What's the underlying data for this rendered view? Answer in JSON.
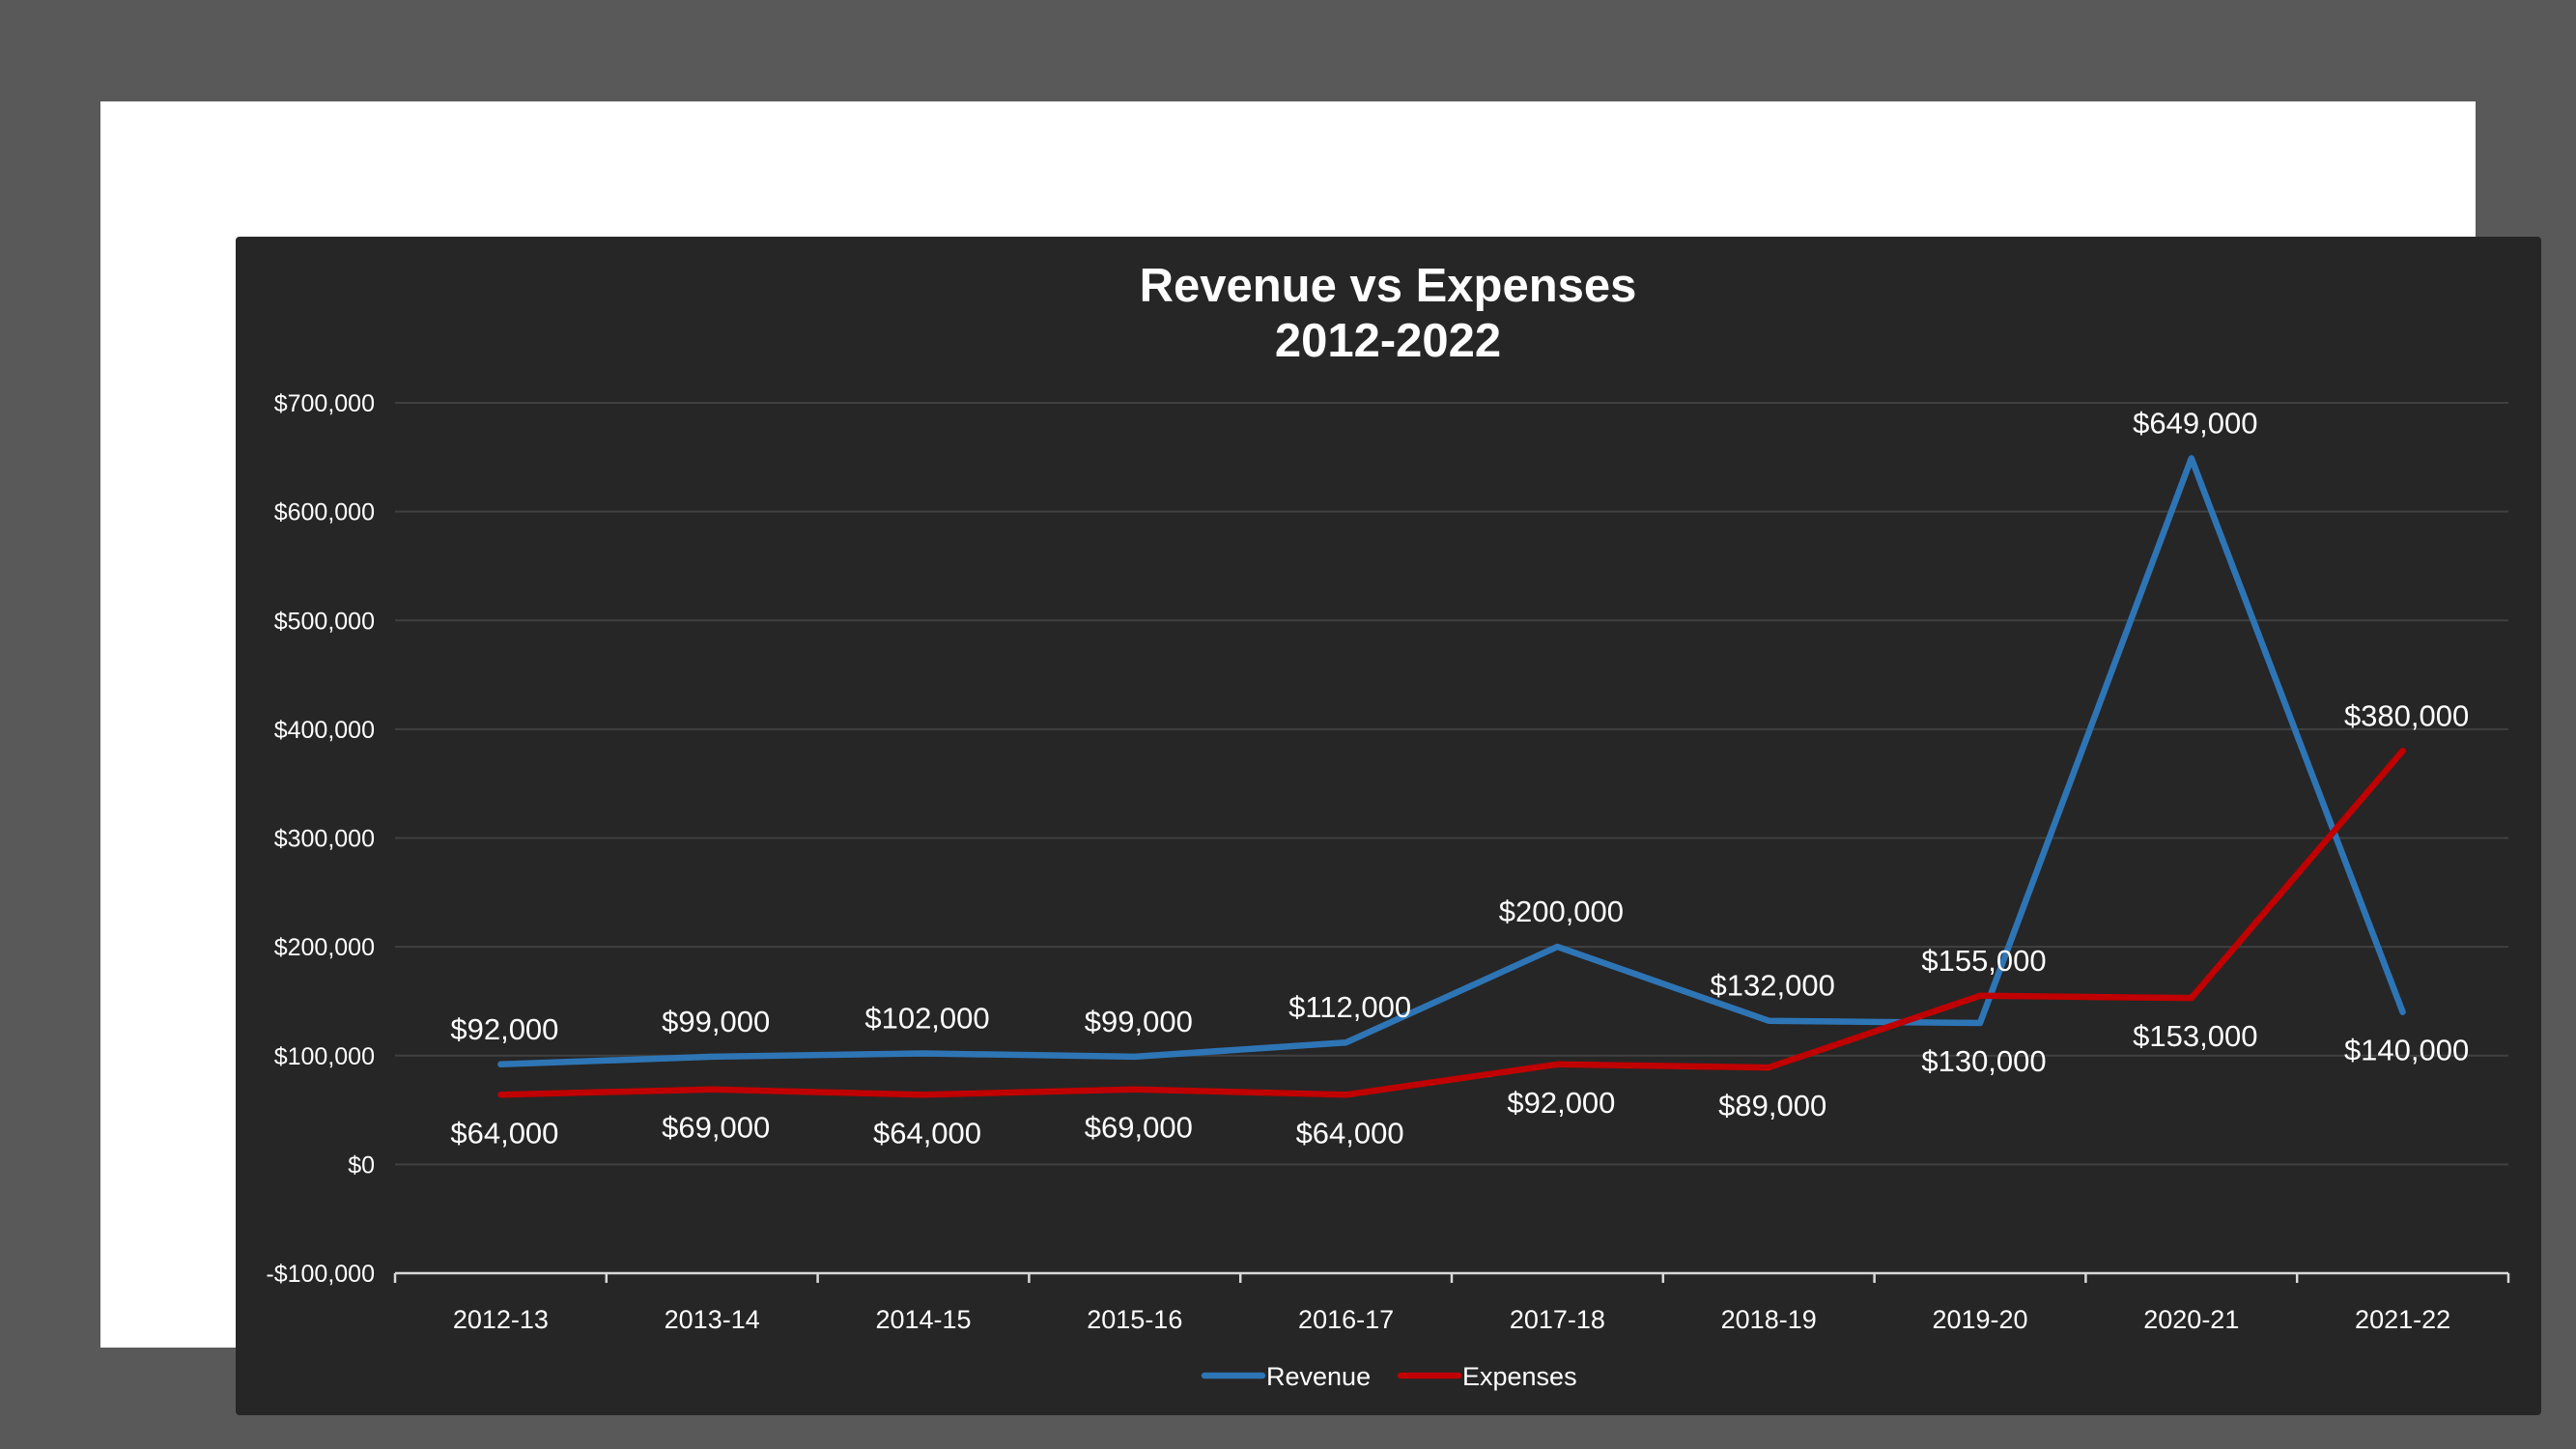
{
  "chart_data": {
    "type": "line",
    "title": [
      "Revenue vs Expenses",
      "2012-2022"
    ],
    "xlabel": "",
    "ylabel": "",
    "categories": [
      "2012-13",
      "2013-14",
      "2014-15",
      "2015-16",
      "2016-17",
      "2017-18",
      "2018-19",
      "2019-20",
      "2020-21",
      "2021-22"
    ],
    "ylim": [
      -100000,
      700000
    ],
    "yticks": [
      -100000,
      0,
      100000,
      200000,
      300000,
      400000,
      500000,
      600000,
      700000
    ],
    "ytick_labels": [
      "-$100,000",
      "$0",
      "$100,000",
      "$200,000",
      "$300,000",
      "$400,000",
      "$500,000",
      "$600,000",
      "$700,000"
    ],
    "grid": true,
    "legend_position": "bottom",
    "series": [
      {
        "name": "Revenue",
        "color": "#2E75B6",
        "values": [
          92000,
          99000,
          102000,
          99000,
          112000,
          200000,
          132000,
          130000,
          649000,
          140000
        ],
        "labels": [
          "$92,000",
          "$99,000",
          "$102,000",
          "$99,000",
          "$112,000",
          "$200,000",
          "$132,000",
          "$130,000",
          "$649,000",
          "$140,000"
        ],
        "label_side": [
          "above",
          "above",
          "above",
          "above",
          "above",
          "above",
          "above",
          "below",
          "above",
          "below"
        ]
      },
      {
        "name": "Expenses",
        "color": "#C00000",
        "values": [
          64000,
          69000,
          64000,
          69000,
          64000,
          92000,
          89000,
          155000,
          153000,
          380000
        ],
        "labels": [
          "$64,000",
          "$69,000",
          "$64,000",
          "$69,000",
          "$64,000",
          "$92,000",
          "$89,000",
          "$155,000",
          "$153,000",
          "$380,000"
        ],
        "label_side": [
          "below",
          "below",
          "below",
          "below",
          "below",
          "below",
          "below",
          "above",
          "below",
          "above"
        ]
      }
    ],
    "colors": {
      "background": "#262626",
      "frame": "#FFFFFF",
      "outer": "#595959",
      "gridline": "#404040",
      "text": "#FFFFFF"
    }
  }
}
